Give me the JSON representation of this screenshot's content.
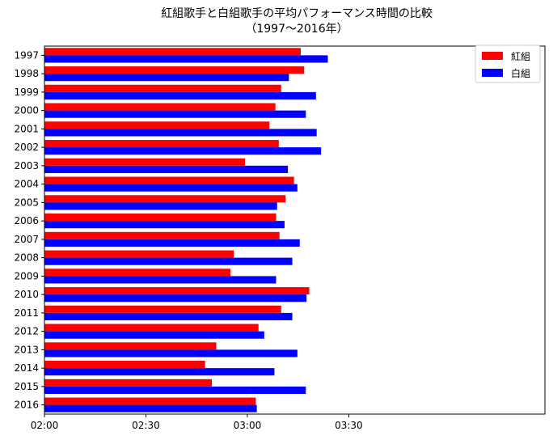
{
  "chart_data": {
    "type": "bar",
    "orientation": "horizontal",
    "title": "紅組歌手と白組歌手の平均パフォーマンス時間の比較",
    "subtitle": "（1997〜2016年）",
    "xlabel": "",
    "ylabel": "",
    "categories": [
      "1997",
      "1998",
      "1999",
      "2000",
      "2001",
      "2002",
      "2003",
      "2004",
      "2005",
      "2006",
      "2007",
      "2008",
      "2009",
      "2010",
      "2011",
      "2012",
      "2013",
      "2014",
      "2015",
      "2016"
    ],
    "x_unit": "minutes since 02:00",
    "xlim": [
      0,
      148
    ],
    "x_ticks": [
      {
        "value": 0,
        "label": "02:00"
      },
      {
        "value": 30,
        "label": "02:30"
      },
      {
        "value": 60,
        "label": "03:00"
      },
      {
        "value": 90,
        "label": "03:30"
      }
    ],
    "series": [
      {
        "name": "紅組",
        "color": "#ff0000",
        "values": [
          75.8,
          76.8,
          70.0,
          68.3,
          66.5,
          69.3,
          59.3,
          73.8,
          71.3,
          68.5,
          69.5,
          56.0,
          55.0,
          78.3,
          70.0,
          63.3,
          50.8,
          47.5,
          49.5,
          62.5
        ]
      },
      {
        "name": "白組",
        "color": "#0000ff",
        "values": [
          83.8,
          72.3,
          80.3,
          77.3,
          80.5,
          81.8,
          72.0,
          74.8,
          68.8,
          71.0,
          75.5,
          73.3,
          68.5,
          77.5,
          73.3,
          65.0,
          74.8,
          68.0,
          77.3,
          62.8
        ]
      }
    ],
    "legend_position": "top-right",
    "grid": false
  }
}
